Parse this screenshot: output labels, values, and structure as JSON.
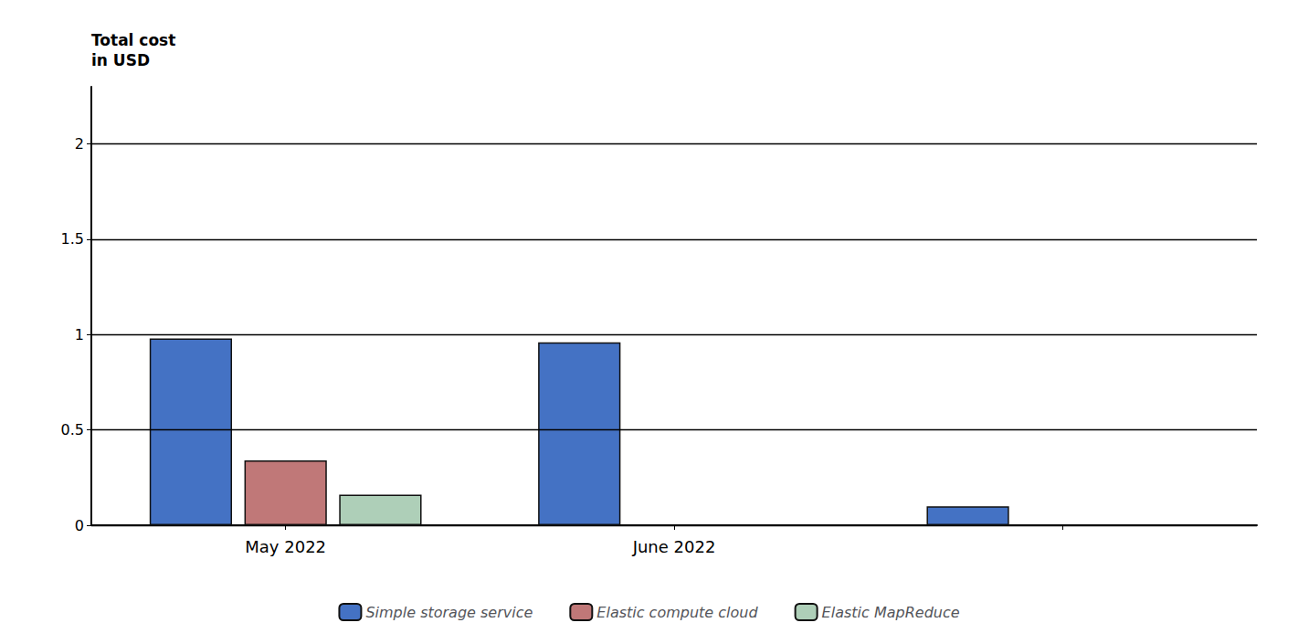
{
  "chart_data": {
    "type": "bar",
    "ylabel": "Total cost\nin USD",
    "categories": [
      "May 2022",
      "June 2022",
      null
    ],
    "series": [
      {
        "name": "Simple storage service",
        "color": "#4472C4",
        "values": [
          0.98,
          0.96,
          0.1
        ]
      },
      {
        "name": "Elastic compute cloud",
        "color": "#C07878",
        "values": [
          0.34,
          null,
          null
        ]
      },
      {
        "name": "Elastic MapReduce",
        "color": "#AECFB8",
        "values": [
          0.16,
          null,
          null
        ]
      }
    ],
    "ylim": [
      0,
      2.3
    ],
    "yticks": [
      0,
      0.5,
      1,
      1.5,
      2
    ],
    "grid": true,
    "legend": "bottom"
  }
}
